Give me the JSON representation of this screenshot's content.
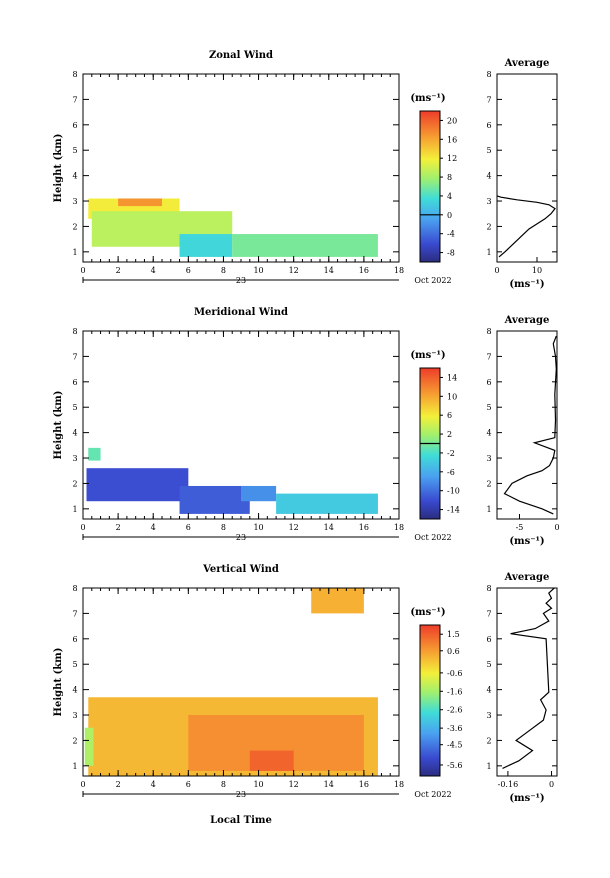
{
  "figure": {
    "xlabel": "Local Time",
    "ylabel": "Height (km)",
    "date_label": "Oct 2022",
    "day_label": "23",
    "average_title": "Average",
    "unit_label": "(ms⁻¹)"
  },
  "chart_data": [
    {
      "type": "heatmap",
      "title": "Zonal Wind",
      "xlabel": "",
      "ylabel": "Height (km)",
      "xlim": [
        0,
        18
      ],
      "ylim": [
        0.6,
        8
      ],
      "x_ticks": [
        0,
        2,
        4,
        6,
        8,
        10,
        12,
        14,
        16,
        18
      ],
      "y_ticks": [
        1,
        2,
        3,
        4,
        5,
        6,
        7,
        8
      ],
      "colorbar": {
        "label": "(ms⁻¹)",
        "min": -10,
        "max": 22,
        "ticks": [
          20,
          16,
          12,
          8,
          4,
          0,
          -4,
          -8
        ],
        "zero_line": 0
      },
      "regions": [
        {
          "x": [
            0.3,
            5.5
          ],
          "y": [
            2.3,
            3.1
          ],
          "value": 12
        },
        {
          "x": [
            0.5,
            8.5
          ],
          "y": [
            1.2,
            2.6
          ],
          "value": 9
        },
        {
          "x": [
            5.5,
            8.5
          ],
          "y": [
            0.8,
            1.7
          ],
          "value": 3
        },
        {
          "x": [
            8.5,
            16.8
          ],
          "y": [
            0.8,
            1.7
          ],
          "value": 6
        },
        {
          "x": [
            2.0,
            4.5
          ],
          "y": [
            2.8,
            3.1
          ],
          "value": 17
        }
      ],
      "profile": {
        "title": "Average",
        "xlabel": "(ms⁻¹)",
        "xlim": [
          0,
          15
        ],
        "x_ticks": [
          0,
          10
        ],
        "ylim": [
          0.6,
          8
        ],
        "x": [
          0.5,
          2,
          4,
          6,
          8,
          10,
          12,
          13.5,
          14.5,
          13,
          10,
          5,
          1,
          0
        ],
        "y": [
          0.8,
          1.0,
          1.3,
          1.6,
          1.9,
          2.1,
          2.3,
          2.5,
          2.7,
          2.85,
          2.95,
          3.05,
          3.15,
          3.2
        ]
      }
    },
    {
      "type": "heatmap",
      "title": "Meridional Wind",
      "xlabel": "",
      "ylabel": "Height (km)",
      "xlim": [
        0,
        18
      ],
      "ylim": [
        0.6,
        8
      ],
      "x_ticks": [
        0,
        2,
        4,
        6,
        8,
        10,
        12,
        14,
        16,
        18
      ],
      "y_ticks": [
        1,
        2,
        3,
        4,
        5,
        6,
        7,
        8
      ],
      "colorbar": {
        "label": "(ms⁻¹)",
        "min": -16,
        "max": 16,
        "ticks": [
          14,
          10,
          6,
          2,
          -2,
          -6,
          -10,
          -14
        ],
        "zero_line": 0
      },
      "regions": [
        {
          "x": [
            0.2,
            6.0
          ],
          "y": [
            1.3,
            2.6
          ],
          "value": -12
        },
        {
          "x": [
            5.5,
            9.5
          ],
          "y": [
            0.8,
            1.9
          ],
          "value": -11
        },
        {
          "x": [
            9.0,
            11.0
          ],
          "y": [
            1.3,
            1.9
          ],
          "value": -8
        },
        {
          "x": [
            11.0,
            16.8
          ],
          "y": [
            0.8,
            1.6
          ],
          "value": -4
        },
        {
          "x": [
            0.3,
            1.0
          ],
          "y": [
            2.9,
            3.4
          ],
          "value": -1
        }
      ],
      "profile": {
        "title": "Average",
        "xlabel": "(ms⁻¹)",
        "xlim": [
          -8,
          0
        ],
        "x_ticks": [
          -5,
          0
        ],
        "ylim": [
          0.6,
          8
        ],
        "x": [
          -0.5,
          -2,
          -5,
          -7,
          -6,
          -4,
          -2,
          -1,
          -0.5,
          -0.3,
          -3,
          -0.3,
          -0.2,
          -0.3,
          -0.1,
          -0.2,
          -0.5,
          -0.1
        ],
        "y": [
          0.8,
          1.0,
          1.3,
          1.6,
          2.0,
          2.3,
          2.5,
          2.7,
          3.0,
          3.3,
          3.6,
          3.8,
          4.5,
          5.5,
          6.5,
          7.0,
          7.5,
          7.8
        ]
      }
    },
    {
      "type": "heatmap",
      "title": "Vertical Wind",
      "xlabel": "Local Time",
      "ylabel": "Height (km)",
      "xlim": [
        0,
        18
      ],
      "ylim": [
        0.6,
        8
      ],
      "x_ticks": [
        0,
        2,
        4,
        6,
        8,
        10,
        12,
        14,
        16,
        18
      ],
      "y_ticks": [
        1,
        2,
        3,
        4,
        5,
        6,
        7,
        8
      ],
      "colorbar": {
        "label": "(ms⁻¹)",
        "min": -6.2,
        "max": 2.0,
        "ticks": [
          1.5,
          0.6,
          -0.6,
          -1.6,
          -2.6,
          -3.6,
          -4.5,
          -5.6
        ],
        "zero_line": null
      },
      "regions": [
        {
          "x": [
            0.3,
            16.8
          ],
          "y": [
            0.6,
            3.7
          ],
          "value": 0.2
        },
        {
          "x": [
            6.0,
            16.0
          ],
          "y": [
            0.8,
            3.0
          ],
          "value": 0.8
        },
        {
          "x": [
            9.5,
            12.0
          ],
          "y": [
            0.8,
            1.6
          ],
          "value": 1.4
        },
        {
          "x": [
            0.1,
            0.6
          ],
          "y": [
            1.0,
            2.5
          ],
          "value": -1.5
        },
        {
          "x": [
            13.0,
            16.0
          ],
          "y": [
            7.0,
            8.0
          ],
          "value": 0.3
        }
      ],
      "profile": {
        "title": "Average",
        "xlabel": "(ms⁻¹)",
        "xlim": [
          -0.2,
          0.02
        ],
        "x_ticks": [
          -0.16,
          0.0
        ],
        "ylim": [
          0.6,
          8
        ],
        "x": [
          -0.18,
          -0.12,
          -0.07,
          -0.13,
          -0.08,
          -0.03,
          -0.02,
          -0.04,
          -0.01,
          -0.02,
          -0.15,
          -0.06,
          -0.01,
          -0.03,
          0.0,
          -0.02,
          0.0,
          -0.01,
          0.01
        ],
        "y": [
          0.9,
          1.2,
          1.6,
          2.0,
          2.4,
          2.8,
          3.2,
          3.6,
          3.9,
          6.0,
          6.2,
          6.4,
          6.7,
          7.0,
          7.2,
          7.4,
          7.6,
          7.8,
          8.0
        ]
      }
    }
  ]
}
